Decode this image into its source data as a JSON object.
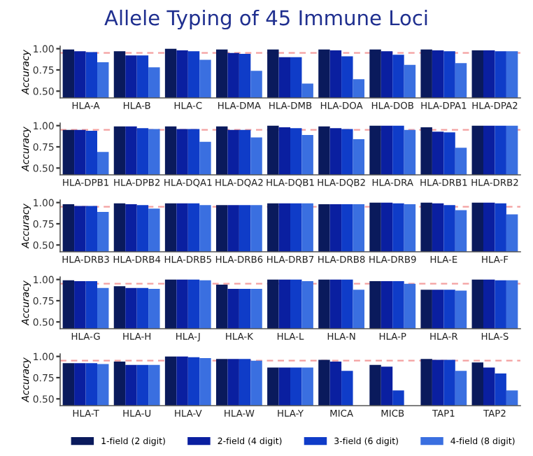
{
  "chart_data": [
    {
      "type": "bar",
      "title": "Allele Typing of 45 Immune Loci",
      "ylabel": "Accuracy",
      "categories": [
        "HLA-A",
        "HLA-B",
        "HLA-C",
        "HLA-DMA",
        "HLA-DMB",
        "HLA-DOA",
        "HLA-DOB",
        "HLA-DPA1",
        "HLA-DPA2"
      ],
      "series": [
        {
          "name": "1-field (2 digit)",
          "color": "#0a1a5c",
          "values": [
            0.99,
            0.97,
            1.0,
            0.99,
            0.99,
            0.99,
            0.99,
            0.99,
            0.98
          ]
        },
        {
          "name": "2-field (4 digit)",
          "color": "#0a1fa0",
          "values": [
            0.97,
            0.92,
            0.98,
            0.95,
            0.9,
            0.98,
            0.97,
            0.98,
            0.98
          ]
        },
        {
          "name": "3-field (6 digit)",
          "color": "#0f3cc8",
          "values": [
            0.96,
            0.92,
            0.97,
            0.94,
            0.9,
            0.91,
            0.93,
            0.97,
            0.97
          ]
        },
        {
          "name": "4-field (8 digit)",
          "color": "#3a6fe0",
          "values": [
            0.84,
            0.78,
            0.87,
            0.74,
            0.59,
            0.64,
            0.81,
            0.83,
            0.97
          ]
        }
      ],
      "ylim": [
        0.42,
        1.03
      ],
      "yticks": [
        {
          "value": 0.5,
          "label": "0.50"
        },
        {
          "value": 0.75,
          "label": "0.75"
        },
        {
          "value": 1.0,
          "label": "1.00"
        }
      ],
      "ref_lines": [
        {
          "axis": "y",
          "value": 0.95,
          "color": "#f4a0a0",
          "line_style": "dashed"
        }
      ],
      "legend": "bottom"
    },
    {
      "type": "bar",
      "ylabel": "Accuracy",
      "categories": [
        "HLA-DPB1",
        "HLA-DPB2",
        "HLA-DQA1",
        "HLA-DQA2",
        "HLA-DQB1",
        "HLA-DQB2",
        "HLA-DRA",
        "HLA-DRB1",
        "HLA-DRB2"
      ],
      "series": [
        {
          "color": "#0a1a5c",
          "values": [
            0.95,
            0.99,
            0.99,
            0.99,
            1.0,
            0.99,
            1.0,
            0.98,
            1.0
          ]
        },
        {
          "color": "#0a1fa0",
          "values": [
            0.95,
            0.99,
            0.96,
            0.95,
            0.98,
            0.97,
            1.0,
            0.93,
            1.0
          ]
        },
        {
          "color": "#0f3cc8",
          "values": [
            0.94,
            0.97,
            0.96,
            0.95,
            0.97,
            0.96,
            1.0,
            0.92,
            1.0
          ]
        },
        {
          "color": "#3a6fe0",
          "values": [
            0.69,
            0.96,
            0.81,
            0.86,
            0.89,
            0.84,
            0.95,
            0.74,
            1.0
          ]
        }
      ],
      "ylim": [
        0.42,
        1.03
      ],
      "yticks": [
        {
          "value": 0.5,
          "label": "0.50"
        },
        {
          "value": 0.75,
          "label": "0.75"
        },
        {
          "value": 1.0,
          "label": "1.00"
        }
      ],
      "ref_lines": [
        {
          "axis": "y",
          "value": 0.95,
          "color": "#f4a0a0",
          "line_style": "dashed"
        }
      ]
    },
    {
      "type": "bar",
      "ylabel": "Accuracy",
      "categories": [
        "HLA-DRB3",
        "HLA-DRB4",
        "HLA-DRB5",
        "HLA-DRB6",
        "HLA-DRB7",
        "HLA-DRB8",
        "HLA-DRB9",
        "HLA-E",
        "HLA-F"
      ],
      "series": [
        {
          "color": "#0a1a5c",
          "values": [
            0.98,
            0.99,
            0.99,
            0.97,
            0.99,
            0.98,
            1.0,
            1.0,
            1.0
          ]
        },
        {
          "color": "#0a1fa0",
          "values": [
            0.96,
            0.98,
            0.99,
            0.97,
            0.99,
            0.98,
            1.0,
            0.99,
            1.0
          ]
        },
        {
          "color": "#0f3cc8",
          "values": [
            0.96,
            0.97,
            0.99,
            0.97,
            0.99,
            0.98,
            0.99,
            0.97,
            0.99
          ]
        },
        {
          "color": "#3a6fe0",
          "values": [
            0.89,
            0.93,
            0.97,
            0.97,
            0.99,
            0.98,
            0.98,
            0.91,
            0.86
          ]
        }
      ],
      "ylim": [
        0.42,
        1.03
      ],
      "yticks": [
        {
          "value": 0.5,
          "label": "0.50"
        },
        {
          "value": 0.75,
          "label": "0.75"
        },
        {
          "value": 1.0,
          "label": "1.00"
        }
      ],
      "ref_lines": [
        {
          "axis": "y",
          "value": 0.95,
          "color": "#f4a0a0",
          "line_style": "dashed"
        }
      ]
    },
    {
      "type": "bar",
      "ylabel": "Accuracy",
      "categories": [
        "HLA-G",
        "HLA-H",
        "HLA-J",
        "HLA-K",
        "HLA-L",
        "HLA-N",
        "HLA-P",
        "HLA-R",
        "HLA-S"
      ],
      "series": [
        {
          "color": "#0a1a5c",
          "values": [
            0.99,
            0.92,
            1.0,
            0.94,
            1.0,
            1.0,
            0.98,
            0.88,
            1.0
          ]
        },
        {
          "color": "#0a1fa0",
          "values": [
            0.98,
            0.9,
            1.0,
            0.89,
            1.0,
            1.0,
            0.98,
            0.88,
            1.0
          ]
        },
        {
          "color": "#0f3cc8",
          "values": [
            0.98,
            0.9,
            1.0,
            0.89,
            1.0,
            1.0,
            0.98,
            0.88,
            0.99
          ]
        },
        {
          "color": "#3a6fe0",
          "values": [
            0.9,
            0.89,
            0.99,
            0.89,
            0.98,
            0.88,
            0.95,
            0.87,
            0.99
          ]
        }
      ],
      "ylim": [
        0.42,
        1.03
      ],
      "yticks": [
        {
          "value": 0.5,
          "label": "0.50"
        },
        {
          "value": 0.75,
          "label": "0.75"
        },
        {
          "value": 1.0,
          "label": "1.00"
        }
      ],
      "ref_lines": [
        {
          "axis": "y",
          "value": 0.95,
          "color": "#f4a0a0",
          "line_style": "dashed"
        }
      ]
    },
    {
      "type": "bar",
      "ylabel": "Accuracy",
      "categories": [
        "HLA-T",
        "HLA-U",
        "HLA-V",
        "HLA-W",
        "HLA-Y",
        "MICA",
        "MICB",
        "TAP1",
        "TAP2"
      ],
      "series": [
        {
          "color": "#0a1a5c",
          "values": [
            0.92,
            0.94,
            1.0,
            0.97,
            0.87,
            0.96,
            0.9,
            0.97,
            0.93
          ]
        },
        {
          "color": "#0a1fa0",
          "values": [
            0.92,
            0.9,
            1.0,
            0.97,
            0.87,
            0.94,
            0.88,
            0.96,
            0.87
          ]
        },
        {
          "color": "#0f3cc8",
          "values": [
            0.92,
            0.9,
            0.99,
            0.97,
            0.87,
            0.83,
            0.6,
            0.96,
            0.8
          ]
        },
        {
          "color": "#3a6fe0",
          "values": [
            0.91,
            0.9,
            0.98,
            0.95,
            0.87,
            null,
            null,
            0.83,
            0.6
          ]
        }
      ],
      "ylim": [
        0.42,
        1.03
      ],
      "yticks": [
        {
          "value": 0.5,
          "label": "0.50"
        },
        {
          "value": 0.75,
          "label": "0.75"
        },
        {
          "value": 1.0,
          "label": "1.00"
        }
      ],
      "ref_lines": [
        {
          "axis": "y",
          "value": 0.95,
          "color": "#f4a0a0",
          "line_style": "dashed"
        }
      ]
    }
  ]
}
